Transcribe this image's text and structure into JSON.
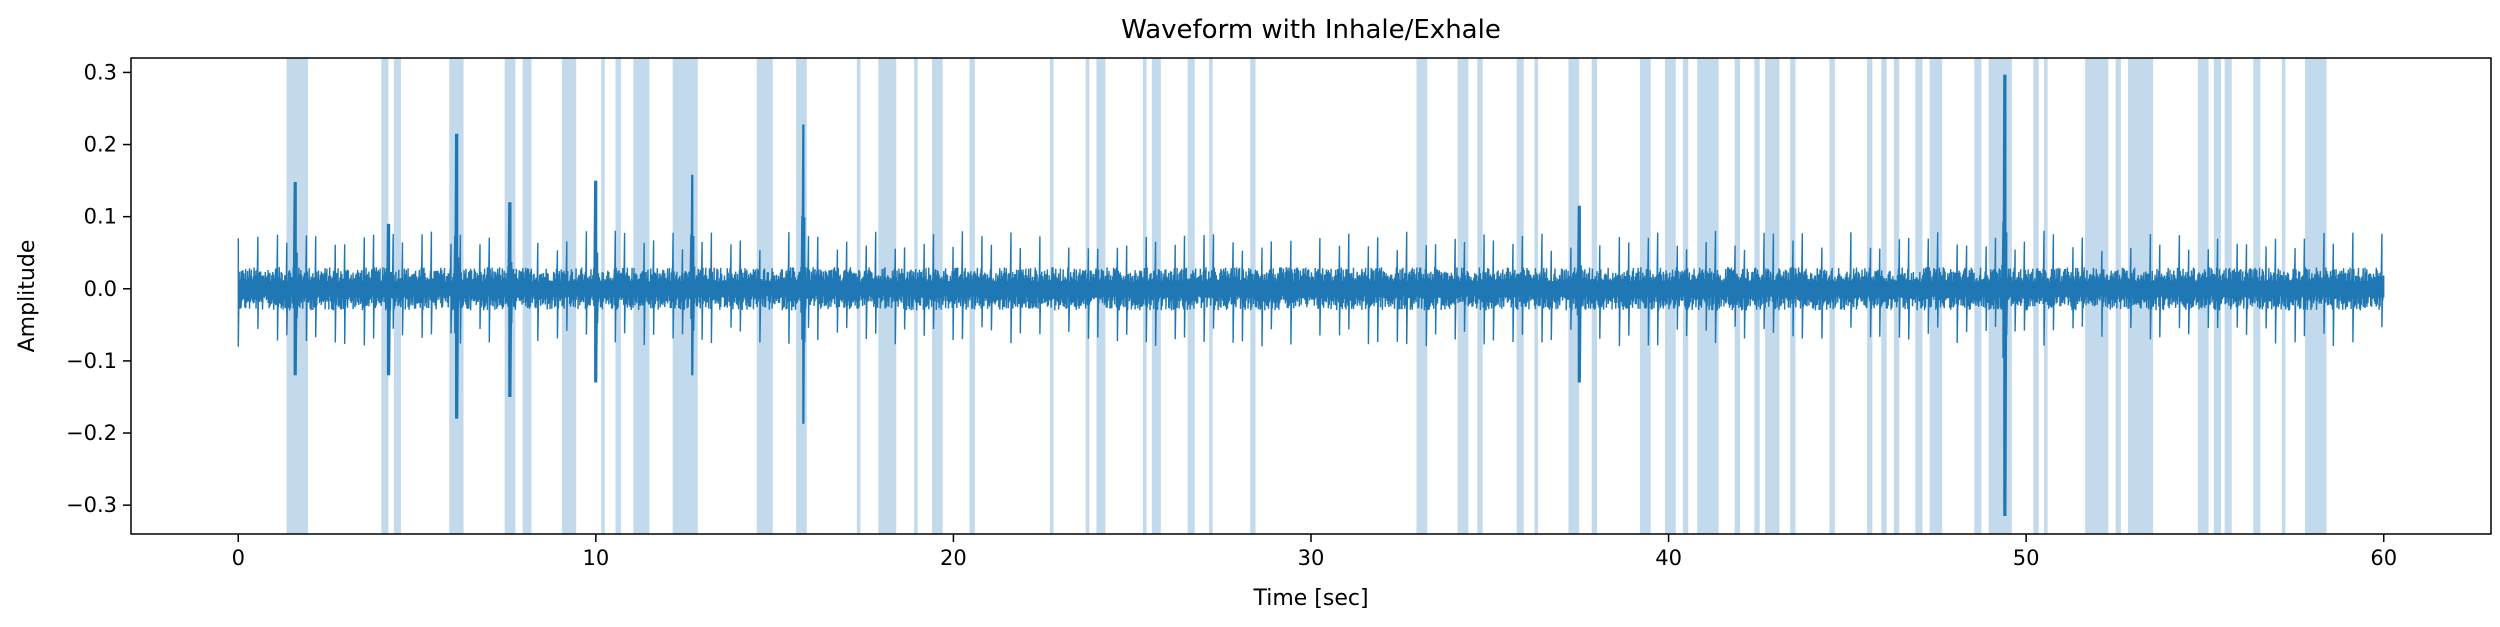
{
  "chart_data": {
    "type": "line",
    "title": "Waveform with Inhale/Exhale",
    "xlabel": "Time [sec]",
    "ylabel": "Amplitude",
    "xlim": [
      -3,
      63
    ],
    "ylim": [
      -0.34,
      0.32
    ],
    "xticks": [
      0,
      10,
      20,
      30,
      40,
      50,
      60
    ],
    "yticks": [
      0.3,
      0.2,
      0.1,
      0.0,
      -0.1,
      -0.2,
      -0.3
    ],
    "xtick_labels": [
      "0",
      "10",
      "20",
      "30",
      "40",
      "50",
      "60"
    ],
    "ytick_labels": [
      "0.3",
      "0.2",
      "0.1",
      "0.0",
      "−0.1",
      "−0.2",
      "−0.3"
    ],
    "grid": false,
    "legend": "none",
    "series": [
      {
        "color": "#1f77b4",
        "x_start": 0,
        "x_end": 60,
        "baseline_amplitude": 0.02,
        "peak_interval_sec": 0.27,
        "peak_amplitude": 0.07,
        "bursts": [
          {
            "x": 1.6,
            "max": 0.148,
            "min": -0.12
          },
          {
            "x": 4.2,
            "max": 0.09,
            "min": -0.12
          },
          {
            "x": 6.1,
            "max": 0.215,
            "min": -0.18
          },
          {
            "x": 7.6,
            "max": 0.12,
            "min": -0.15
          },
          {
            "x": 10.0,
            "max": 0.15,
            "min": -0.13
          },
          {
            "x": 12.7,
            "max": 0.158,
            "min": -0.12
          },
          {
            "x": 15.8,
            "max": 0.228,
            "min": -0.187
          },
          {
            "x": 37.5,
            "max": 0.115,
            "min": -0.13
          },
          {
            "x": 49.4,
            "max": 0.297,
            "min": -0.315
          }
        ]
      }
    ],
    "shaded_regions": {
      "color": "#1f77b4",
      "opacity": 0.27,
      "intervals": [
        [
          1.35,
          1.95
        ],
        [
          4.0,
          4.2
        ],
        [
          4.35,
          4.55
        ],
        [
          5.9,
          6.3
        ],
        [
          7.45,
          7.75
        ],
        [
          7.95,
          8.2
        ],
        [
          9.05,
          9.45
        ],
        [
          10.15,
          10.25
        ],
        [
          10.55,
          10.7
        ],
        [
          11.05,
          11.5
        ],
        [
          12.15,
          12.85
        ],
        [
          14.5,
          14.95
        ],
        [
          15.6,
          15.9
        ],
        [
          17.3,
          17.4
        ],
        [
          17.9,
          18.4
        ],
        [
          18.9,
          19.0
        ],
        [
          19.4,
          19.7
        ],
        [
          20.45,
          20.6
        ],
        [
          22.7,
          22.8
        ],
        [
          23.7,
          23.8
        ],
        [
          24.0,
          24.25
        ],
        [
          25.3,
          25.4
        ],
        [
          25.55,
          25.8
        ],
        [
          26.55,
          26.75
        ],
        [
          27.15,
          27.25
        ],
        [
          28.3,
          28.45
        ],
        [
          32.95,
          33.25
        ],
        [
          34.1,
          34.4
        ],
        [
          34.65,
          34.8
        ],
        [
          35.75,
          35.95
        ],
        [
          36.25,
          36.35
        ],
        [
          37.2,
          37.5
        ],
        [
          37.85,
          38.0
        ],
        [
          39.2,
          39.5
        ],
        [
          39.9,
          40.2
        ],
        [
          40.4,
          40.55
        ],
        [
          40.8,
          41.4
        ],
        [
          41.85,
          42.0
        ],
        [
          42.4,
          42.55
        ],
        [
          42.7,
          43.1
        ],
        [
          43.4,
          43.55
        ],
        [
          44.5,
          44.65
        ],
        [
          45.55,
          45.7
        ],
        [
          45.95,
          46.1
        ],
        [
          46.3,
          46.45
        ],
        [
          46.9,
          47.1
        ],
        [
          47.3,
          47.65
        ],
        [
          48.55,
          48.75
        ],
        [
          48.95,
          49.6
        ],
        [
          50.2,
          50.35
        ],
        [
          50.5,
          50.6
        ],
        [
          51.65,
          52.3
        ],
        [
          52.5,
          52.65
        ],
        [
          52.85,
          53.55
        ],
        [
          54.8,
          55.1
        ],
        [
          55.25,
          55.45
        ],
        [
          55.55,
          55.75
        ],
        [
          56.35,
          56.55
        ],
        [
          57.15,
          57.25
        ],
        [
          57.8,
          58.4
        ]
      ]
    }
  }
}
